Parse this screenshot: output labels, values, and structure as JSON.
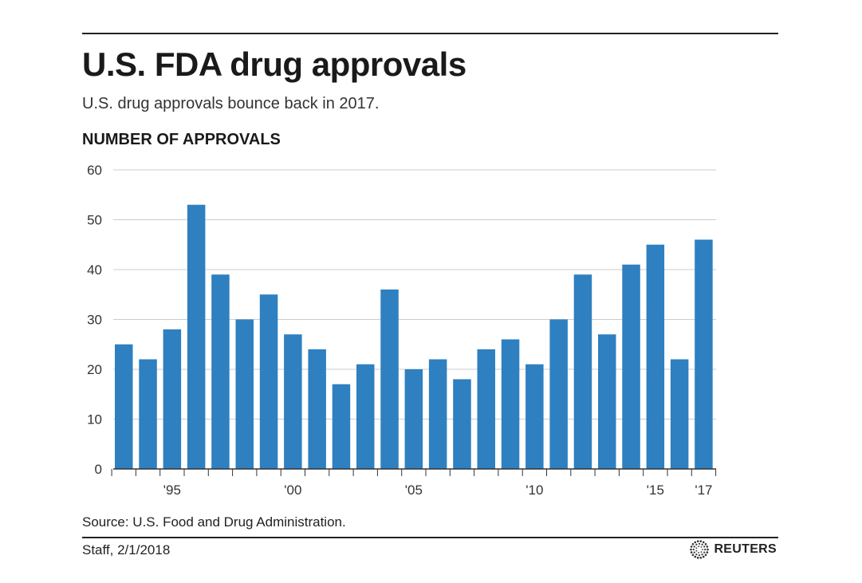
{
  "header": {
    "title": "U.S. FDA drug approvals",
    "subtitle": "U.S. drug approvals bounce back in 2017."
  },
  "footer": {
    "source": "Source: U.S. Food and Drug Administration.",
    "credit": "Staff, 2/1/2018",
    "logo_text": "REUTERS"
  },
  "colors": {
    "bar": "#2e80c0",
    "grid": "#cccccc",
    "axis": "#333333"
  },
  "chart_data": {
    "type": "bar",
    "ylabel": "NUMBER OF APPROVALS",
    "categories": [
      "1993",
      "1994",
      "1995",
      "1996",
      "1997",
      "1998",
      "1999",
      "2000",
      "2001",
      "2002",
      "2003",
      "2004",
      "2005",
      "2006",
      "2007",
      "2008",
      "2009",
      "2010",
      "2011",
      "2012",
      "2013",
      "2014",
      "2015",
      "2016",
      "2017"
    ],
    "values": [
      25,
      22,
      28,
      53,
      39,
      30,
      35,
      27,
      24,
      17,
      21,
      36,
      20,
      22,
      18,
      24,
      26,
      21,
      30,
      39,
      27,
      41,
      45,
      22,
      46
    ],
    "ylim": [
      0,
      60
    ],
    "yticks": [
      0,
      10,
      20,
      30,
      40,
      50,
      60
    ],
    "xtick_labels": [
      {
        "category": "1995",
        "label": "'95"
      },
      {
        "category": "2000",
        "label": "'00"
      },
      {
        "category": "2005",
        "label": "'05"
      },
      {
        "category": "2010",
        "label": "'10"
      },
      {
        "category": "2015",
        "label": "'15"
      },
      {
        "category": "2017",
        "label": "'17"
      }
    ],
    "grid": true,
    "legend": "none"
  }
}
